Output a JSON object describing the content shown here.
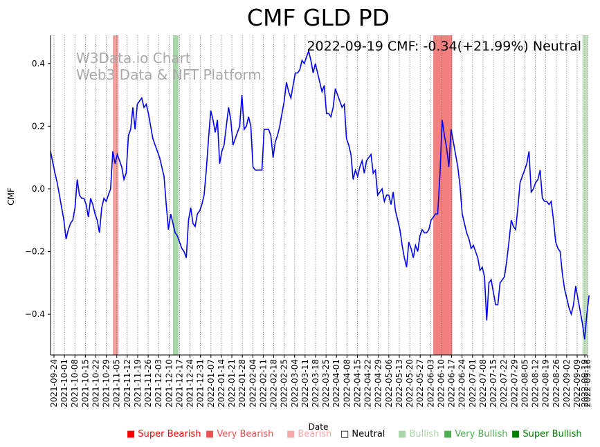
{
  "chart_data": {
    "type": "line",
    "title": "CMF GLD PD",
    "annotation": "2022-09-19 CMF: -0.34(+21.99%) Neutral",
    "watermark": [
      "W3Data.io Chart",
      "Web3 Data & NFT Platform"
    ],
    "xlabel": "Date",
    "ylabel": "CMF",
    "x_range": [
      "2021-09-24",
      "2022-09-19"
    ],
    "ylim": [
      -0.53,
      0.49
    ],
    "yticks": [
      -0.4,
      -0.2,
      0.0,
      0.2,
      0.4
    ],
    "ytick_labels": [
      "−0.4",
      "−0.2",
      "0.0",
      "0.2",
      "0.4"
    ],
    "xtick_labels": [
      "2021-09-24",
      "2021-10-01",
      "2021-10-08",
      "2021-10-15",
      "2021-10-22",
      "2021-10-29",
      "2021-11-05",
      "2021-11-12",
      "2021-11-19",
      "2021-11-26",
      "2021-12-03",
      "2021-12-10",
      "2021-12-17",
      "2021-12-24",
      "2021-12-31",
      "2022-01-07",
      "2022-01-14",
      "2022-01-21",
      "2022-01-28",
      "2022-02-04",
      "2022-02-11",
      "2022-02-18",
      "2022-02-25",
      "2022-03-04",
      "2022-03-11",
      "2022-03-18",
      "2022-03-25",
      "2022-04-01",
      "2022-04-08",
      "2022-04-15",
      "2022-04-22",
      "2022-04-29",
      "2022-05-06",
      "2022-05-13",
      "2022-05-20",
      "2022-05-27",
      "2022-06-03",
      "2022-06-10",
      "2022-06-17",
      "2022-06-24",
      "2022-07-01",
      "2022-07-08",
      "2022-07-15",
      "2022-07-22",
      "2022-07-29",
      "2022-08-05",
      "2022-08-12",
      "2022-08-19",
      "2022-08-26",
      "2022-09-02",
      "2022-09-09",
      "2022-09-16",
      "2022-09-19"
    ],
    "series": [
      {
        "name": "CMF",
        "color": "#0000ee",
        "points": [
          [
            0,
            0.12
          ],
          [
            2,
            0.05
          ],
          [
            3,
            0.02
          ],
          [
            4,
            -0.02
          ],
          [
            5,
            -0.06
          ],
          [
            6,
            -0.1
          ],
          [
            7,
            -0.16
          ],
          [
            8,
            -0.13
          ],
          [
            9,
            -0.11
          ],
          [
            10,
            -0.1
          ],
          [
            11,
            -0.06
          ],
          [
            12,
            0.03
          ],
          [
            13,
            -0.02
          ],
          [
            14,
            -0.03
          ],
          [
            15,
            -0.03
          ],
          [
            16,
            -0.05
          ],
          [
            17,
            -0.09
          ],
          [
            18,
            -0.03
          ],
          [
            19,
            -0.05
          ],
          [
            20,
            -0.08
          ],
          [
            21,
            -0.1
          ],
          [
            22,
            -0.14
          ],
          [
            23,
            -0.06
          ],
          [
            24,
            -0.03
          ],
          [
            25,
            -0.04
          ],
          [
            26,
            -0.02
          ],
          [
            27,
            0.0
          ],
          [
            28,
            0.12
          ],
          [
            29,
            0.08
          ],
          [
            30,
            0.11
          ],
          [
            31,
            0.09
          ],
          [
            32,
            0.07
          ],
          [
            33,
            0.03
          ],
          [
            34,
            0.05
          ],
          [
            35,
            0.17
          ],
          [
            36,
            0.19
          ],
          [
            37,
            0.26
          ],
          [
            38,
            0.19
          ],
          [
            39,
            0.27
          ],
          [
            40,
            0.28
          ],
          [
            41,
            0.29
          ],
          [
            42,
            0.26
          ],
          [
            43,
            0.27
          ],
          [
            44,
            0.24
          ],
          [
            45,
            0.2
          ],
          [
            46,
            0.16
          ],
          [
            47,
            0.14
          ],
          [
            48,
            0.12
          ],
          [
            49,
            0.1
          ],
          [
            50,
            0.07
          ],
          [
            51,
            0.04
          ],
          [
            52,
            -0.05
          ],
          [
            53,
            -0.13
          ],
          [
            54,
            -0.08
          ],
          [
            55,
            -0.11
          ],
          [
            56,
            -0.14
          ],
          [
            57,
            -0.15
          ],
          [
            58,
            -0.17
          ],
          [
            59,
            -0.19
          ],
          [
            60,
            -0.2
          ],
          [
            61,
            -0.22
          ],
          [
            62,
            -0.1
          ],
          [
            63,
            -0.06
          ],
          [
            64,
            -0.11
          ],
          [
            65,
            -0.12
          ],
          [
            66,
            -0.08
          ],
          [
            67,
            -0.07
          ],
          [
            68,
            -0.05
          ],
          [
            69,
            -0.02
          ],
          [
            70,
            0.06
          ],
          [
            71,
            0.16
          ],
          [
            72,
            0.25
          ],
          [
            73,
            0.22
          ],
          [
            74,
            0.18
          ],
          [
            75,
            0.22
          ],
          [
            76,
            0.08
          ],
          [
            77,
            0.12
          ],
          [
            78,
            0.14
          ],
          [
            79,
            0.2
          ],
          [
            80,
            0.26
          ],
          [
            81,
            0.22
          ],
          [
            82,
            0.14
          ],
          [
            83,
            0.16
          ],
          [
            84,
            0.18
          ],
          [
            85,
            0.2
          ],
          [
            86,
            0.3
          ],
          [
            87,
            0.19
          ],
          [
            88,
            0.2
          ],
          [
            89,
            0.23
          ],
          [
            90,
            0.2
          ],
          [
            91,
            0.07
          ],
          [
            92,
            0.06
          ],
          [
            93,
            0.06
          ],
          [
            94,
            0.06
          ],
          [
            95,
            0.06
          ],
          [
            96,
            0.19
          ],
          [
            97,
            0.19
          ],
          [
            98,
            0.19
          ],
          [
            99,
            0.17
          ],
          [
            100,
            0.1
          ],
          [
            101,
            0.15
          ],
          [
            102,
            0.17
          ],
          [
            103,
            0.2
          ],
          [
            104,
            0.24
          ],
          [
            105,
            0.28
          ],
          [
            106,
            0.34
          ],
          [
            107,
            0.31
          ],
          [
            108,
            0.29
          ],
          [
            109,
            0.33
          ],
          [
            110,
            0.37
          ],
          [
            111,
            0.37
          ],
          [
            112,
            0.38
          ],
          [
            113,
            0.41
          ],
          [
            114,
            0.4
          ],
          [
            115,
            0.42
          ],
          [
            116,
            0.44
          ],
          [
            117,
            0.41
          ],
          [
            118,
            0.37
          ],
          [
            119,
            0.4
          ],
          [
            120,
            0.37
          ],
          [
            121,
            0.34
          ],
          [
            122,
            0.31
          ],
          [
            123,
            0.33
          ],
          [
            124,
            0.24
          ],
          [
            125,
            0.24
          ],
          [
            126,
            0.23
          ],
          [
            127,
            0.26
          ],
          [
            128,
            0.32
          ],
          [
            129,
            0.3
          ],
          [
            130,
            0.28
          ],
          [
            131,
            0.26
          ],
          [
            132,
            0.27
          ],
          [
            133,
            0.16
          ],
          [
            134,
            0.14
          ],
          [
            135,
            0.11
          ],
          [
            136,
            0.03
          ],
          [
            137,
            0.06
          ],
          [
            138,
            0.04
          ],
          [
            139,
            0.07
          ],
          [
            140,
            0.09
          ],
          [
            141,
            0.05
          ],
          [
            142,
            0.09
          ],
          [
            143,
            0.1
          ],
          [
            144,
            0.11
          ],
          [
            145,
            0.05
          ],
          [
            146,
            0.06
          ],
          [
            147,
            -0.02
          ],
          [
            148,
            -0.01
          ],
          [
            149,
            0.0
          ],
          [
            150,
            -0.04
          ],
          [
            151,
            -0.02
          ],
          [
            152,
            -0.02
          ],
          [
            153,
            -0.05
          ],
          [
            154,
            -0.01
          ],
          [
            155,
            -0.07
          ],
          [
            156,
            -0.1
          ],
          [
            157,
            -0.13
          ],
          [
            158,
            -0.18
          ],
          [
            159,
            -0.22
          ],
          [
            160,
            -0.25
          ],
          [
            161,
            -0.17
          ],
          [
            162,
            -0.19
          ],
          [
            163,
            -0.22
          ],
          [
            164,
            -0.18
          ],
          [
            165,
            -0.2
          ],
          [
            166,
            -0.15
          ],
          [
            167,
            -0.13
          ],
          [
            168,
            -0.14
          ],
          [
            169,
            -0.14
          ],
          [
            170,
            -0.13
          ],
          [
            171,
            -0.1
          ],
          [
            172,
            -0.09
          ],
          [
            173,
            -0.08
          ],
          [
            174,
            -0.08
          ],
          [
            175,
            0.05
          ],
          [
            176,
            0.22
          ],
          [
            177,
            0.17
          ],
          [
            178,
            0.13
          ],
          [
            179,
            0.07
          ],
          [
            180,
            0.19
          ],
          [
            181,
            0.15
          ],
          [
            182,
            0.11
          ],
          [
            183,
            0.07
          ],
          [
            184,
            0.01
          ],
          [
            185,
            -0.08
          ],
          [
            186,
            -0.11
          ],
          [
            187,
            -0.14
          ],
          [
            188,
            -0.16
          ],
          [
            189,
            -0.19
          ],
          [
            190,
            -0.18
          ],
          [
            191,
            -0.2
          ],
          [
            192,
            -0.22
          ],
          [
            193,
            -0.26
          ],
          [
            194,
            -0.25
          ],
          [
            195,
            -0.28
          ],
          [
            196,
            -0.42
          ],
          [
            197,
            -0.3
          ],
          [
            198,
            -0.29
          ],
          [
            199,
            -0.33
          ],
          [
            200,
            -0.37
          ],
          [
            201,
            -0.37
          ],
          [
            202,
            -0.3
          ],
          [
            203,
            -0.29
          ],
          [
            204,
            -0.28
          ],
          [
            205,
            -0.23
          ],
          [
            206,
            -0.17
          ],
          [
            207,
            -0.1
          ],
          [
            208,
            -0.12
          ],
          [
            209,
            -0.13
          ],
          [
            210,
            -0.06
          ],
          [
            211,
            0.02
          ],
          [
            212,
            0.04
          ],
          [
            213,
            0.06
          ],
          [
            214,
            0.08
          ],
          [
            215,
            0.12
          ],
          [
            216,
            -0.01
          ],
          [
            217,
            0.0
          ],
          [
            218,
            0.02
          ],
          [
            219,
            0.03
          ],
          [
            220,
            0.06
          ],
          [
            221,
            -0.03
          ],
          [
            222,
            -0.04
          ],
          [
            223,
            -0.04
          ],
          [
            224,
            -0.05
          ],
          [
            225,
            -0.04
          ],
          [
            226,
            -0.1
          ],
          [
            227,
            -0.17
          ],
          [
            228,
            -0.19
          ],
          [
            229,
            -0.2
          ],
          [
            230,
            -0.27
          ],
          [
            231,
            -0.32
          ],
          [
            232,
            -0.35
          ],
          [
            233,
            -0.38
          ],
          [
            234,
            -0.4
          ],
          [
            235,
            -0.37
          ],
          [
            236,
            -0.31
          ],
          [
            237,
            -0.35
          ],
          [
            238,
            -0.39
          ],
          [
            239,
            -0.43
          ],
          [
            240,
            -0.48
          ],
          [
            241,
            -0.4
          ],
          [
            242,
            -0.34
          ]
        ]
      }
    ],
    "bands": [
      {
        "start": 28.0,
        "end": 30.5,
        "color": "#f8a0a0",
        "label": "Bearish"
      },
      {
        "start": 55.0,
        "end": 57.5,
        "color": "#a8d6a8",
        "label": "Bullish"
      },
      {
        "start": 172.0,
        "end": 180.5,
        "color": "#f47f7f",
        "label": "Very Bearish"
      },
      {
        "start": 239.0,
        "end": 241.5,
        "color": "#c5e4c5",
        "label": "Bullish"
      }
    ],
    "legend": [
      {
        "label": "Super Bearish",
        "color": "#ff0000",
        "marker": "■"
      },
      {
        "label": "Very Bearish",
        "color": "#f05050",
        "marker": "■"
      },
      {
        "label": "Bearish",
        "color": "#f6a8a8",
        "marker": "■"
      },
      {
        "label": "Neutral",
        "color": "#000000",
        "marker": "□"
      },
      {
        "label": "Bullish",
        "color": "#a8d6a8",
        "marker": "■"
      },
      {
        "label": "Very Bullish",
        "color": "#4caf50",
        "marker": "■"
      },
      {
        "label": "Super Bullish",
        "color": "#008000",
        "marker": "■"
      }
    ]
  }
}
